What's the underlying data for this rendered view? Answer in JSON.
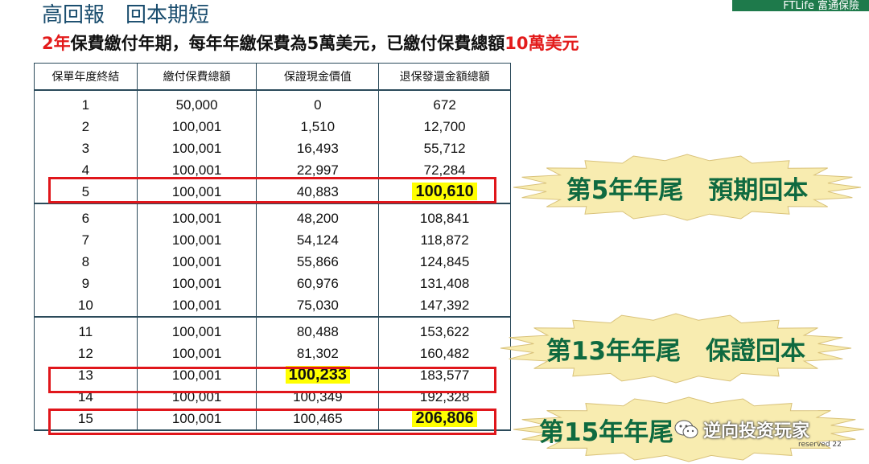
{
  "header": {
    "title": "高回報　回本期短",
    "brand": "FTLife 富通保險",
    "subtitle": {
      "years": "2年",
      "part1": "保費繳付年期，每年年繳保費為",
      "annual": "5萬",
      "part2": "美元，已繳付保費總額",
      "total": "10萬",
      "part3": "美元"
    }
  },
  "table": {
    "columns": [
      "保單年度終結",
      "繳付保費總額",
      "保證現金價值",
      "退保發還金額總額"
    ],
    "rows": [
      [
        "1",
        "50,000",
        "0",
        "672"
      ],
      [
        "2",
        "100,001",
        "1,510",
        "12,700"
      ],
      [
        "3",
        "100,001",
        "16,493",
        "55,712"
      ],
      [
        "4",
        "100,001",
        "22,997",
        "72,284"
      ],
      [
        "5",
        "100,001",
        "40,883",
        "100,610"
      ],
      [
        "6",
        "100,001",
        "48,200",
        "108,841"
      ],
      [
        "7",
        "100,001",
        "54,124",
        "118,872"
      ],
      [
        "8",
        "100,001",
        "55,866",
        "124,845"
      ],
      [
        "9",
        "100,001",
        "60,976",
        "131,408"
      ],
      [
        "10",
        "100,001",
        "75,030",
        "147,392"
      ],
      [
        "11",
        "100,001",
        "80,488",
        "153,622"
      ],
      [
        "12",
        "100,001",
        "81,302",
        "160,482"
      ],
      [
        "13",
        "100,001",
        "100,233",
        "183,577"
      ],
      [
        "14",
        "100,001",
        "100,349",
        "192,328"
      ],
      [
        "15",
        "100,001",
        "100,465",
        "206,806"
      ]
    ]
  },
  "callouts": {
    "year5": "第5年年尾　預期回本",
    "year13": "第13年年尾　保證回本",
    "year15": "第15年年尾"
  },
  "watermark": "逆向投资玩家",
  "footer": "reserved 22",
  "colors": {
    "accent_red": "#e31b1b",
    "highlight": "#ffff00",
    "callout_fill": "#f8ecb0",
    "callout_text": "#0f6a40",
    "title_blue": "#1a4d6e"
  }
}
